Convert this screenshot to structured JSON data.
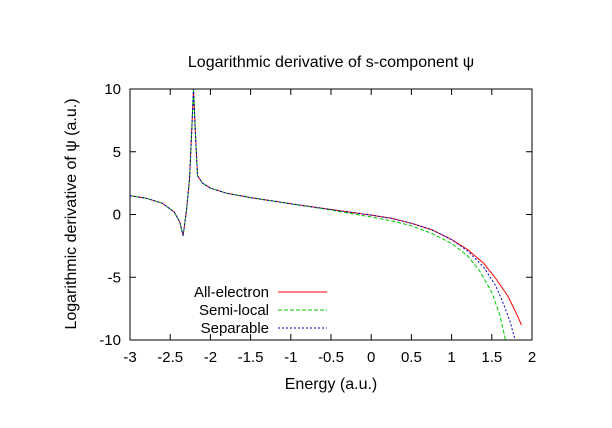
{
  "chart_data": {
    "type": "line",
    "title": "Logarithmic derivative of s-component ψ",
    "xlabel": "Energy (a.u.)",
    "ylabel": "Logarithmic derivative of ψ (a.u.)",
    "xlim": [
      -3,
      2
    ],
    "ylim": [
      -10,
      10
    ],
    "xticks": [
      "-3",
      "-2.5",
      "-2",
      "-1.5",
      "-1",
      "-0.5",
      "0",
      "0.5",
      "1",
      "1.5",
      "2"
    ],
    "yticks": [
      "10",
      "5",
      "0",
      "-5",
      "-10"
    ],
    "grid": false,
    "legend_position": "bottom-left",
    "series": [
      {
        "name": "All-electron",
        "color": "#ff0000",
        "dash": "",
        "points": [
          [
            -3,
            1.5
          ],
          [
            -2.8,
            1.3
          ],
          [
            -2.6,
            0.9
          ],
          [
            -2.45,
            0.2
          ],
          [
            -2.38,
            -0.6
          ],
          [
            -2.34,
            -1.7
          ],
          [
            -2.3,
            0.2
          ],
          [
            -2.26,
            2.8
          ],
          [
            -2.23,
            7
          ],
          [
            -2.21,
            10
          ],
          [
            -2.19,
            7
          ],
          [
            -2.16,
            3.1
          ],
          [
            -2.1,
            2.5
          ],
          [
            -2.0,
            2.1
          ],
          [
            -1.8,
            1.7
          ],
          [
            -1.5,
            1.35
          ],
          [
            -1.0,
            0.85
          ],
          [
            -0.5,
            0.4
          ],
          [
            0,
            -0.05
          ],
          [
            0.25,
            -0.3
          ],
          [
            0.5,
            -0.7
          ],
          [
            0.75,
            -1.2
          ],
          [
            1.0,
            -2.0
          ],
          [
            1.2,
            -2.8
          ],
          [
            1.4,
            -3.9
          ],
          [
            1.55,
            -5.1
          ],
          [
            1.7,
            -6.5
          ],
          [
            1.8,
            -7.8
          ],
          [
            1.87,
            -8.8
          ]
        ]
      },
      {
        "name": "Semi-local",
        "color": "#00c800",
        "dash": "4,2",
        "points": [
          [
            -3,
            1.5
          ],
          [
            -2.8,
            1.3
          ],
          [
            -2.6,
            0.9
          ],
          [
            -2.45,
            0.2
          ],
          [
            -2.38,
            -0.6
          ],
          [
            -2.34,
            -1.7
          ],
          [
            -2.3,
            0.2
          ],
          [
            -2.26,
            2.8
          ],
          [
            -2.23,
            7
          ],
          [
            -2.21,
            10
          ],
          [
            -2.19,
            7
          ],
          [
            -2.16,
            3.1
          ],
          [
            -2.1,
            2.5
          ],
          [
            -2.0,
            2.1
          ],
          [
            -1.8,
            1.7
          ],
          [
            -1.5,
            1.35
          ],
          [
            -1.0,
            0.85
          ],
          [
            -0.5,
            0.35
          ],
          [
            0,
            -0.2
          ],
          [
            0.25,
            -0.5
          ],
          [
            0.5,
            -0.9
          ],
          [
            0.75,
            -1.5
          ],
          [
            1.0,
            -2.3
          ],
          [
            1.2,
            -3.3
          ],
          [
            1.35,
            -4.5
          ],
          [
            1.5,
            -6.2
          ],
          [
            1.6,
            -8.0
          ],
          [
            1.67,
            -10
          ]
        ]
      },
      {
        "name": "Separable",
        "color": "#0000c8",
        "dash": "2,2",
        "points": [
          [
            -3,
            1.5
          ],
          [
            -2.8,
            1.3
          ],
          [
            -2.6,
            0.9
          ],
          [
            -2.45,
            0.2
          ],
          [
            -2.38,
            -0.6
          ],
          [
            -2.34,
            -1.7
          ],
          [
            -2.3,
            0.2
          ],
          [
            -2.26,
            2.8
          ],
          [
            -2.23,
            7
          ],
          [
            -2.21,
            10
          ],
          [
            -2.19,
            7
          ],
          [
            -2.16,
            3.1
          ],
          [
            -2.1,
            2.5
          ],
          [
            -2.0,
            2.1
          ],
          [
            -1.8,
            1.7
          ],
          [
            -1.5,
            1.35
          ],
          [
            -1.0,
            0.85
          ],
          [
            -0.5,
            0.4
          ],
          [
            0,
            -0.05
          ],
          [
            0.25,
            -0.3
          ],
          [
            0.5,
            -0.7
          ],
          [
            0.75,
            -1.2
          ],
          [
            1.0,
            -2.0
          ],
          [
            1.2,
            -2.9
          ],
          [
            1.4,
            -4.2
          ],
          [
            1.55,
            -5.7
          ],
          [
            1.65,
            -7.2
          ],
          [
            1.73,
            -8.6
          ],
          [
            1.79,
            -10
          ]
        ]
      }
    ]
  }
}
